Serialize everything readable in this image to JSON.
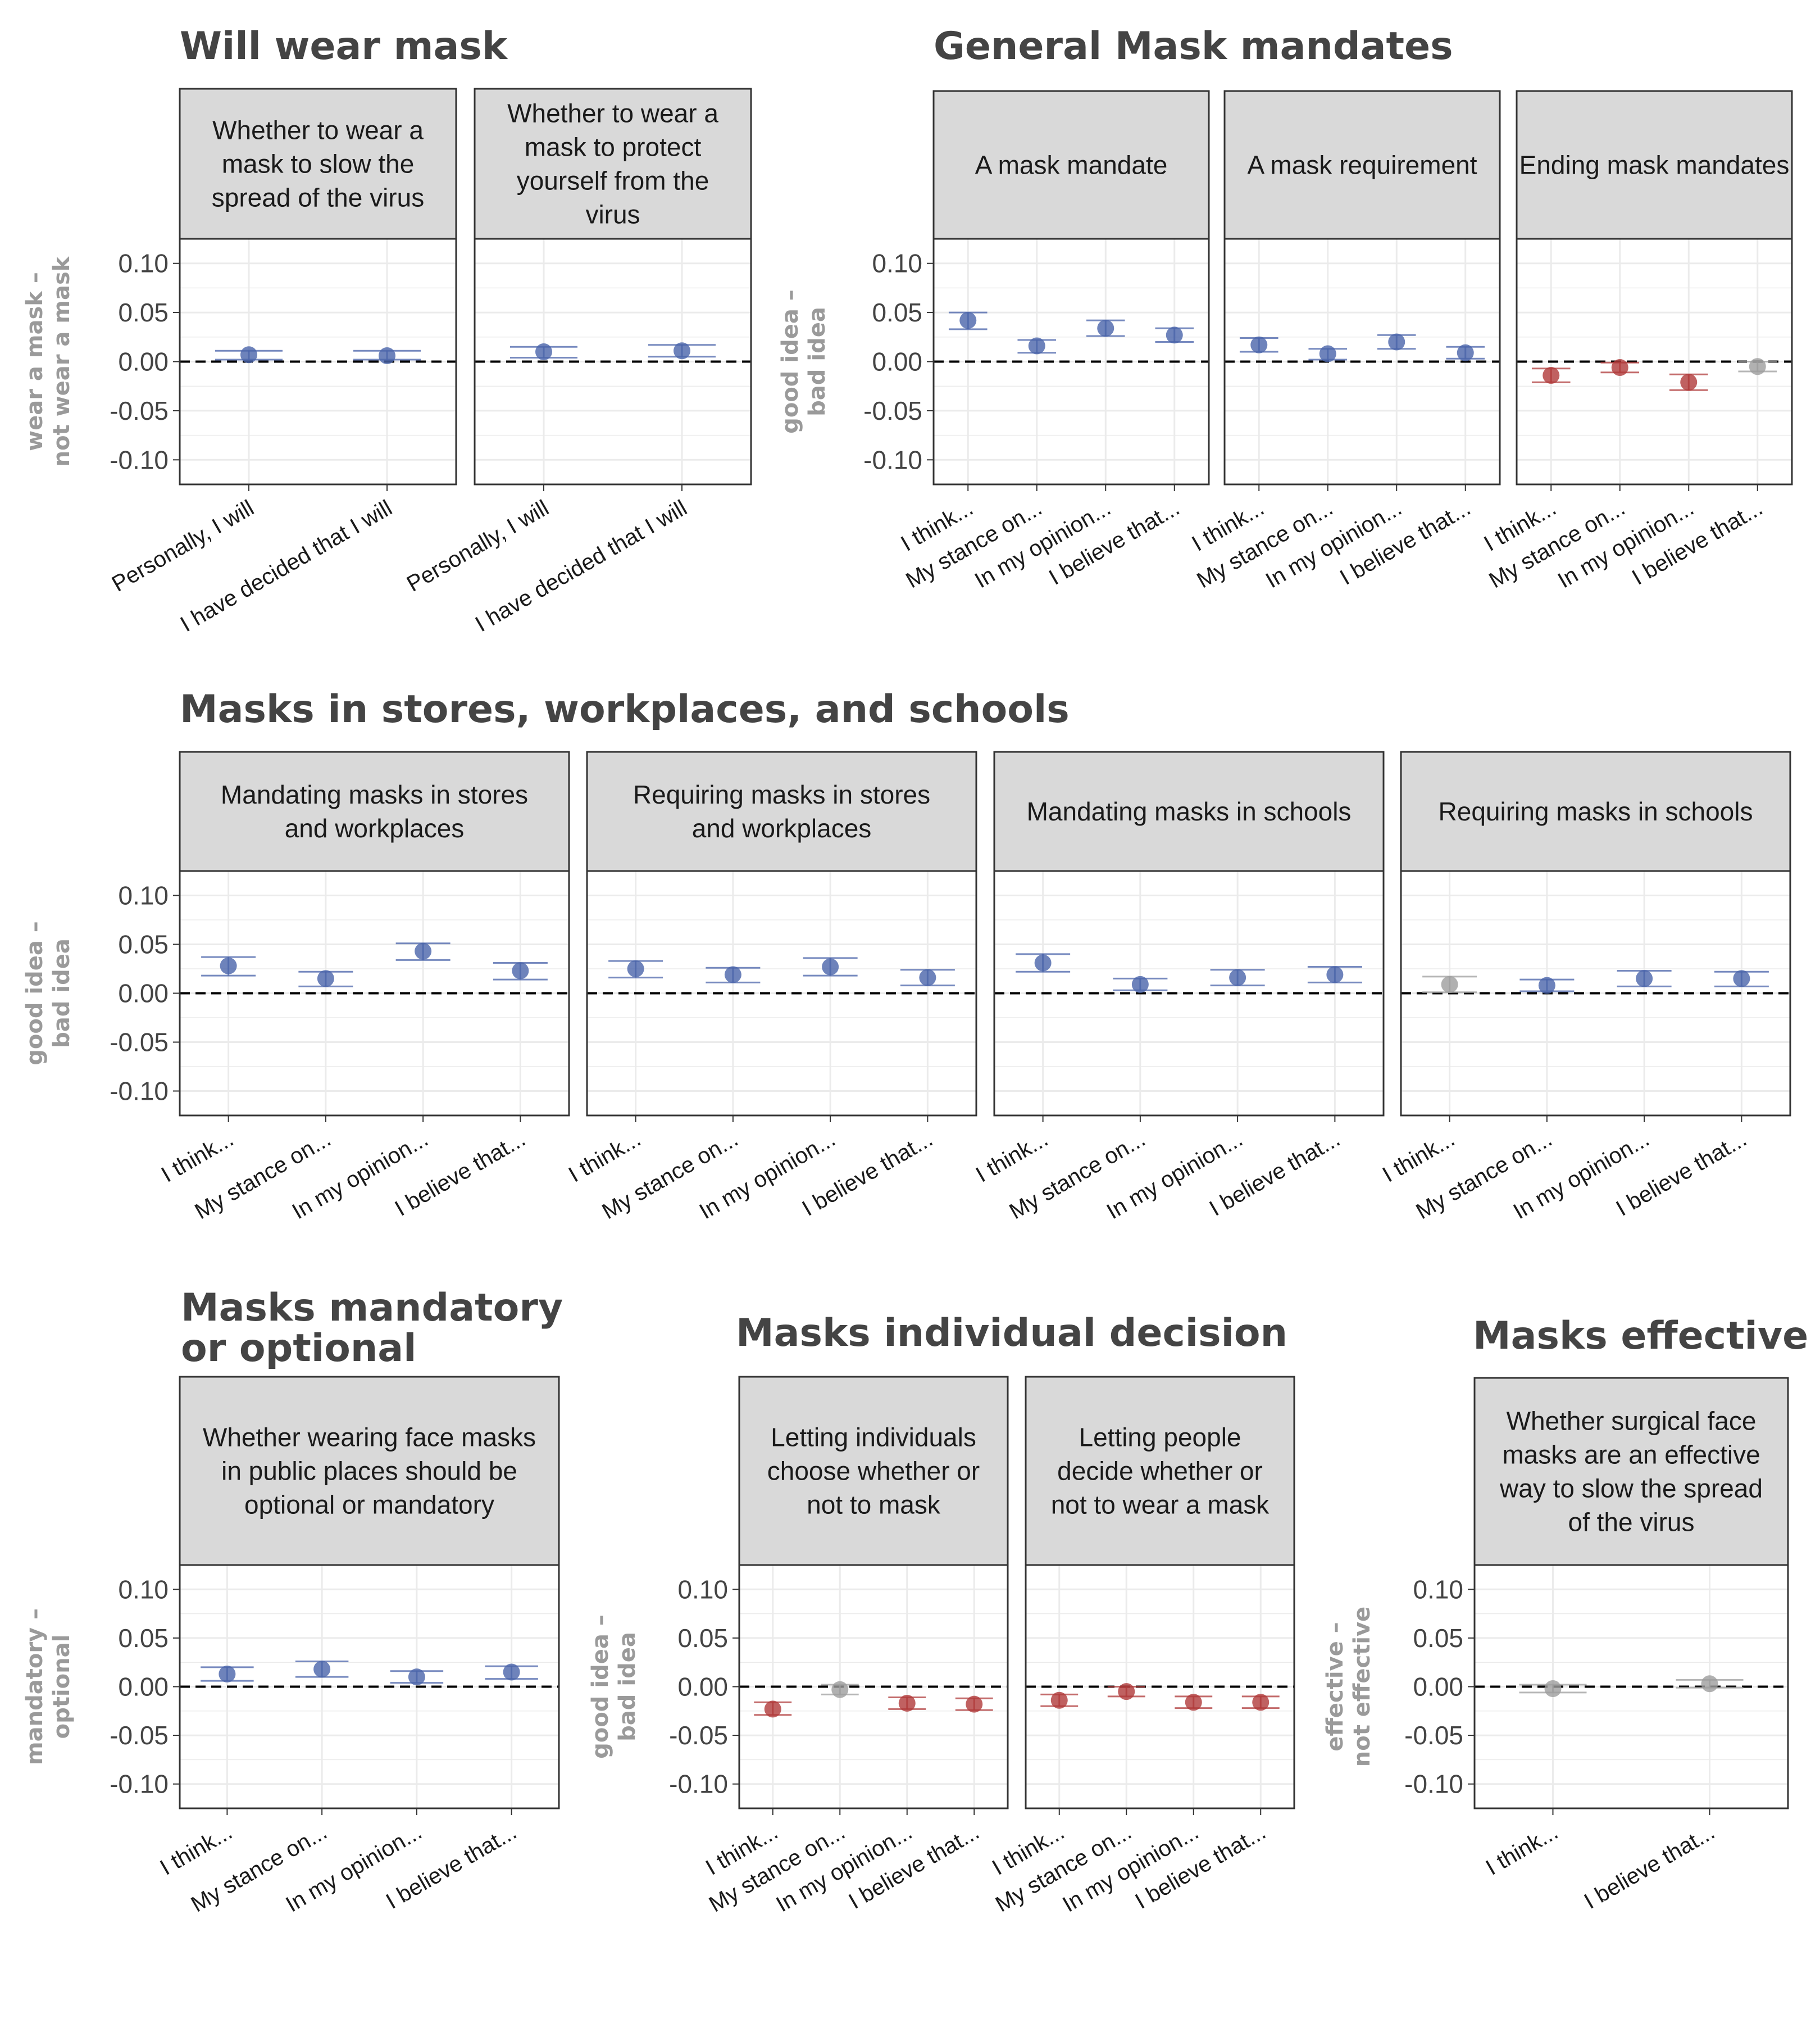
{
  "colors": {
    "positive": "#4a64aa",
    "negative": "#b03a3a",
    "neutral": "#9e9e9e",
    "strip": "#d9d9d9",
    "grid": "#ebebeb",
    "title": "#444444",
    "ylabel": "#9a9a9a"
  },
  "chart_data": [
    {
      "type": "scatter",
      "id": "will-wear",
      "title": "Will wear mask",
      "ylabel": [
        "wear a mask –",
        "not wear a mask"
      ],
      "ylim": [
        -0.125,
        0.125
      ],
      "yticks": [
        "0.10",
        "0.05",
        "0.00",
        "-0.05",
        "-0.10"
      ],
      "grid": true,
      "panels": [
        {
          "strip": "Whether to wear a mask to slow the spread of the virus",
          "categories": [
            "Personally, I will",
            "I have decided that I will"
          ],
          "points": [
            {
              "y": 0.007,
              "lo": 0.002,
              "hi": 0.011,
              "sign": "positive"
            },
            {
              "y": 0.006,
              "lo": 0.002,
              "hi": 0.011,
              "sign": "positive"
            }
          ]
        },
        {
          "strip": "Whether to wear a mask to protect yourself from the virus",
          "categories": [
            "Personally, I will",
            "I have decided that I will"
          ],
          "points": [
            {
              "y": 0.01,
              "lo": 0.004,
              "hi": 0.015,
              "sign": "positive"
            },
            {
              "y": 0.011,
              "lo": 0.005,
              "hi": 0.017,
              "sign": "positive"
            }
          ]
        }
      ]
    },
    {
      "type": "scatter",
      "id": "mandates",
      "title": "General Mask mandates",
      "ylabel": [
        "good idea –",
        "bad idea"
      ],
      "ylim": [
        -0.125,
        0.125
      ],
      "yticks": [
        "0.10",
        "0.05",
        "0.00",
        "-0.05",
        "-0.10"
      ],
      "grid": true,
      "panels": [
        {
          "strip": "A mask mandate",
          "categories": [
            "I think...",
            "My stance on...",
            "In my opinion...",
            "I believe that..."
          ],
          "points": [
            {
              "y": 0.042,
              "lo": 0.033,
              "hi": 0.05,
              "sign": "positive"
            },
            {
              "y": 0.016,
              "lo": 0.009,
              "hi": 0.022,
              "sign": "positive"
            },
            {
              "y": 0.034,
              "lo": 0.026,
              "hi": 0.042,
              "sign": "positive"
            },
            {
              "y": 0.027,
              "lo": 0.02,
              "hi": 0.034,
              "sign": "positive"
            }
          ]
        },
        {
          "strip": "A mask requirement",
          "categories": [
            "I think...",
            "My stance on...",
            "In my opinion...",
            "I believe that..."
          ],
          "points": [
            {
              "y": 0.017,
              "lo": 0.01,
              "hi": 0.024,
              "sign": "positive"
            },
            {
              "y": 0.008,
              "lo": 0.002,
              "hi": 0.013,
              "sign": "positive"
            },
            {
              "y": 0.02,
              "lo": 0.013,
              "hi": 0.027,
              "sign": "positive"
            },
            {
              "y": 0.009,
              "lo": 0.003,
              "hi": 0.015,
              "sign": "positive"
            }
          ]
        },
        {
          "strip": "Ending mask mandates",
          "categories": [
            "I think...",
            "My stance on...",
            "In my opinion...",
            "I believe that..."
          ],
          "points": [
            {
              "y": -0.014,
              "lo": -0.021,
              "hi": -0.007,
              "sign": "negative"
            },
            {
              "y": -0.006,
              "lo": -0.011,
              "hi": -0.001,
              "sign": "negative"
            },
            {
              "y": -0.021,
              "lo": -0.029,
              "hi": -0.013,
              "sign": "negative"
            },
            {
              "y": -0.005,
              "lo": -0.01,
              "hi": 0.0,
              "sign": "neutral"
            }
          ]
        }
      ]
    },
    {
      "type": "scatter",
      "id": "stores-schools",
      "title": "Masks in stores, workplaces, and schools",
      "ylabel": [
        "good idea –",
        "bad idea"
      ],
      "ylim": [
        -0.125,
        0.125
      ],
      "yticks": [
        "0.10",
        "0.05",
        "0.00",
        "-0.05",
        "-0.10"
      ],
      "grid": true,
      "panels": [
        {
          "strip": "Mandating masks in stores and workplaces",
          "categories": [
            "I think...",
            "My stance on...",
            "In my opinion...",
            "I believe that..."
          ],
          "points": [
            {
              "y": 0.028,
              "lo": 0.018,
              "hi": 0.037,
              "sign": "positive"
            },
            {
              "y": 0.015,
              "lo": 0.007,
              "hi": 0.022,
              "sign": "positive"
            },
            {
              "y": 0.043,
              "lo": 0.034,
              "hi": 0.051,
              "sign": "positive"
            },
            {
              "y": 0.023,
              "lo": 0.014,
              "hi": 0.031,
              "sign": "positive"
            }
          ]
        },
        {
          "strip": "Requiring masks in stores and workplaces",
          "categories": [
            "I think...",
            "My stance on...",
            "In my opinion...",
            "I believe that..."
          ],
          "points": [
            {
              "y": 0.025,
              "lo": 0.016,
              "hi": 0.033,
              "sign": "positive"
            },
            {
              "y": 0.019,
              "lo": 0.011,
              "hi": 0.026,
              "sign": "positive"
            },
            {
              "y": 0.027,
              "lo": 0.018,
              "hi": 0.036,
              "sign": "positive"
            },
            {
              "y": 0.016,
              "lo": 0.008,
              "hi": 0.024,
              "sign": "positive"
            }
          ]
        },
        {
          "strip": "Mandating masks in schools",
          "categories": [
            "I think...",
            "My stance on...",
            "In my opinion...",
            "I believe that..."
          ],
          "points": [
            {
              "y": 0.031,
              "lo": 0.022,
              "hi": 0.04,
              "sign": "positive"
            },
            {
              "y": 0.009,
              "lo": 0.003,
              "hi": 0.015,
              "sign": "positive"
            },
            {
              "y": 0.016,
              "lo": 0.008,
              "hi": 0.024,
              "sign": "positive"
            },
            {
              "y": 0.019,
              "lo": 0.011,
              "hi": 0.027,
              "sign": "positive"
            }
          ]
        },
        {
          "strip": "Requiring masks in schools",
          "categories": [
            "I think...",
            "My stance on...",
            "In my opinion...",
            "I believe that..."
          ],
          "points": [
            {
              "y": 0.009,
              "lo": 0.001,
              "hi": 0.017,
              "sign": "neutral"
            },
            {
              "y": 0.008,
              "lo": 0.002,
              "hi": 0.014,
              "sign": "positive"
            },
            {
              "y": 0.015,
              "lo": 0.007,
              "hi": 0.023,
              "sign": "positive"
            },
            {
              "y": 0.015,
              "lo": 0.007,
              "hi": 0.022,
              "sign": "positive"
            }
          ]
        }
      ]
    },
    {
      "type": "scatter",
      "id": "mandatory-optional",
      "title": [
        "Masks mandatory",
        "or optional"
      ],
      "ylabel": [
        "mandatory –",
        "optional"
      ],
      "ylim": [
        -0.125,
        0.125
      ],
      "yticks": [
        "0.10",
        "0.05",
        "0.00",
        "-0.05",
        "-0.10"
      ],
      "grid": true,
      "panels": [
        {
          "strip": "Whether wearing face masks in public places should be optional or mandatory",
          "categories": [
            "I think...",
            "My stance on...",
            "In my opinion...",
            "I believe that..."
          ],
          "points": [
            {
              "y": 0.013,
              "lo": 0.006,
              "hi": 0.02,
              "sign": "positive"
            },
            {
              "y": 0.018,
              "lo": 0.01,
              "hi": 0.026,
              "sign": "positive"
            },
            {
              "y": 0.01,
              "lo": 0.004,
              "hi": 0.016,
              "sign": "positive"
            },
            {
              "y": 0.015,
              "lo": 0.008,
              "hi": 0.021,
              "sign": "positive"
            }
          ]
        }
      ]
    },
    {
      "type": "scatter",
      "id": "individual-decision",
      "title": "Masks individual decision",
      "ylabel": [
        "good idea –",
        "bad idea"
      ],
      "ylim": [
        -0.125,
        0.125
      ],
      "yticks": [
        "0.10",
        "0.05",
        "0.00",
        "-0.05",
        "-0.10"
      ],
      "grid": true,
      "panels": [
        {
          "strip": "Letting individuals choose whether or not to mask",
          "categories": [
            "I think...",
            "My stance on...",
            "In my opinion...",
            "I believe that..."
          ],
          "points": [
            {
              "y": -0.023,
              "lo": -0.029,
              "hi": -0.016,
              "sign": "negative"
            },
            {
              "y": -0.003,
              "lo": -0.008,
              "hi": 0.002,
              "sign": "neutral"
            },
            {
              "y": -0.017,
              "lo": -0.023,
              "hi": -0.011,
              "sign": "negative"
            },
            {
              "y": -0.018,
              "lo": -0.024,
              "hi": -0.012,
              "sign": "negative"
            }
          ]
        },
        {
          "strip": "Letting people decide whether or not to wear a mask",
          "categories": [
            "I think...",
            "My stance on...",
            "In my opinion...",
            "I believe that..."
          ],
          "points": [
            {
              "y": -0.014,
              "lo": -0.02,
              "hi": -0.008,
              "sign": "negative"
            },
            {
              "y": -0.005,
              "lo": -0.01,
              "hi": 0.0,
              "sign": "negative"
            },
            {
              "y": -0.016,
              "lo": -0.022,
              "hi": -0.01,
              "sign": "negative"
            },
            {
              "y": -0.016,
              "lo": -0.022,
              "hi": -0.01,
              "sign": "negative"
            }
          ]
        }
      ]
    },
    {
      "type": "scatter",
      "id": "effective",
      "title": "Masks effective",
      "ylabel": [
        "effective –",
        "not effective"
      ],
      "ylim": [
        -0.125,
        0.125
      ],
      "yticks": [
        "0.10",
        "0.05",
        "0.00",
        "-0.05",
        "-0.10"
      ],
      "grid": true,
      "panels": [
        {
          "strip": "Whether surgical face masks are an effective way to slow the spread of the virus",
          "categories": [
            "I think...",
            "I believe that..."
          ],
          "points": [
            {
              "y": -0.002,
              "lo": -0.006,
              "hi": 0.002,
              "sign": "neutral"
            },
            {
              "y": 0.003,
              "lo": -0.001,
              "hi": 0.007,
              "sign": "neutral"
            }
          ]
        }
      ]
    }
  ]
}
